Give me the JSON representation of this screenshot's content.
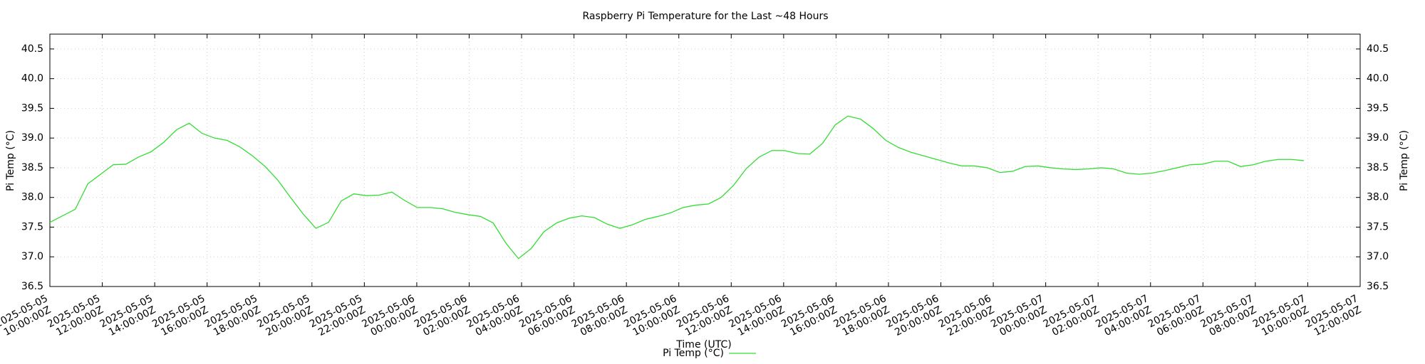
{
  "chart_data": {
    "type": "line",
    "title": "Raspberry Pi Temperature for the Last ~48 Hours",
    "xlabel": "Time (UTC)",
    "ylabel": "Pi Temp (°C)",
    "y2label": "Pi Temp (°C)",
    "grid": true,
    "legend": "bottom",
    "xlim": [
      "2025-05-05T10:00:00Z",
      "2025-05-07T12:00:00Z"
    ],
    "xticks": [
      {
        "value": "2025-05-05T10:00:00Z",
        "label": "2025-05-05 10:00:00Z"
      },
      {
        "value": "2025-05-05T12:00:00Z",
        "label": "2025-05-05 12:00:00Z"
      },
      {
        "value": "2025-05-05T14:00:00Z",
        "label": "2025-05-05 14:00:00Z"
      },
      {
        "value": "2025-05-05T16:00:00Z",
        "label": "2025-05-05 16:00:00Z"
      },
      {
        "value": "2025-05-05T18:00:00Z",
        "label": "2025-05-05 18:00:00Z"
      },
      {
        "value": "2025-05-05T20:00:00Z",
        "label": "2025-05-05 20:00:00Z"
      },
      {
        "value": "2025-05-05T22:00:00Z",
        "label": "2025-05-05 22:00:00Z"
      },
      {
        "value": "2025-05-06T00:00:00Z",
        "label": "2025-05-06 00:00:00Z"
      },
      {
        "value": "2025-05-06T02:00:00Z",
        "label": "2025-05-06 02:00:00Z"
      },
      {
        "value": "2025-05-06T04:00:00Z",
        "label": "2025-05-06 04:00:00Z"
      },
      {
        "value": "2025-05-06T06:00:00Z",
        "label": "2025-05-06 06:00:00Z"
      },
      {
        "value": "2025-05-06T08:00:00Z",
        "label": "2025-05-06 08:00:00Z"
      },
      {
        "value": "2025-05-06T10:00:00Z",
        "label": "2025-05-06 10:00:00Z"
      },
      {
        "value": "2025-05-06T12:00:00Z",
        "label": "2025-05-06 12:00:00Z"
      },
      {
        "value": "2025-05-06T14:00:00Z",
        "label": "2025-05-06 14:00:00Z"
      },
      {
        "value": "2025-05-06T16:00:00Z",
        "label": "2025-05-06 16:00:00Z"
      },
      {
        "value": "2025-05-06T18:00:00Z",
        "label": "2025-05-06 18:00:00Z"
      },
      {
        "value": "2025-05-06T20:00:00Z",
        "label": "2025-05-06 20:00:00Z"
      },
      {
        "value": "2025-05-06T22:00:00Z",
        "label": "2025-05-06 22:00:00Z"
      },
      {
        "value": "2025-05-07T00:00:00Z",
        "label": "2025-05-07 00:00:00Z"
      },
      {
        "value": "2025-05-07T02:00:00Z",
        "label": "2025-05-07 02:00:00Z"
      },
      {
        "value": "2025-05-07T04:00:00Z",
        "label": "2025-05-07 04:00:00Z"
      },
      {
        "value": "2025-05-07T06:00:00Z",
        "label": "2025-05-07 06:00:00Z"
      },
      {
        "value": "2025-05-07T08:00:00Z",
        "label": "2025-05-07 08:00:00Z"
      },
      {
        "value": "2025-05-07T10:00:00Z",
        "label": "2025-05-07 10:00:00Z"
      },
      {
        "value": "2025-05-07T12:00:00Z",
        "label": "2025-05-07 12:00:00Z"
      }
    ],
    "ylim": [
      36.5,
      40.75
    ],
    "yticks": [
      36.5,
      {
        "value": 37,
        "label": "37.0"
      },
      37.5,
      {
        "value": 38,
        "label": "38.0"
      },
      38.5,
      {
        "value": 39,
        "label": "39.0"
      },
      39.5,
      {
        "value": 40,
        "label": "40.0"
      },
      40.5
    ],
    "y2lim": [
      36.5,
      40.75
    ],
    "y2ticks": [
      36.5,
      {
        "value": 37,
        "label": "37.0"
      },
      37.5,
      {
        "value": 38,
        "label": "38.0"
      },
      38.5,
      {
        "value": 39,
        "label": "39.0"
      },
      39.5,
      {
        "value": 40,
        "label": "40.0"
      },
      40.5
    ],
    "x": [
      "2025-05-05T10:00:00Z",
      "2025-05-05T10:29:00Z",
      "2025-05-05T10:58:00Z",
      "2025-05-05T11:27:00Z",
      "2025-05-05T11:56:00Z",
      "2025-05-05T12:25:00Z",
      "2025-05-05T12:54:00Z",
      "2025-05-05T13:23:00Z",
      "2025-05-05T13:52:00Z",
      "2025-05-05T14:21:00Z",
      "2025-05-05T14:50:00Z",
      "2025-05-05T15:19:00Z",
      "2025-05-05T15:48:00Z",
      "2025-05-05T16:17:00Z",
      "2025-05-05T16:46:00Z",
      "2025-05-05T17:15:00Z",
      "2025-05-05T17:44:00Z",
      "2025-05-05T18:13:00Z",
      "2025-05-05T18:42:00Z",
      "2025-05-05T19:11:00Z",
      "2025-05-05T19:40:00Z",
      "2025-05-05T20:09:00Z",
      "2025-05-05T20:38:00Z",
      "2025-05-05T21:07:00Z",
      "2025-05-05T21:36:00Z",
      "2025-05-05T22:05:00Z",
      "2025-05-05T22:34:00Z",
      "2025-05-05T23:03:00Z",
      "2025-05-05T23:32:00Z",
      "2025-05-06T00:01:00Z",
      "2025-05-06T00:30:00Z",
      "2025-05-06T00:59:00Z",
      "2025-05-06T01:28:00Z",
      "2025-05-06T01:57:00Z",
      "2025-05-06T02:26:00Z",
      "2025-05-06T02:55:00Z",
      "2025-05-06T03:24:00Z",
      "2025-05-06T03:53:00Z",
      "2025-05-06T04:22:00Z",
      "2025-05-06T04:51:00Z",
      "2025-05-06T05:20:00Z",
      "2025-05-06T05:49:00Z",
      "2025-05-06T06:18:00Z",
      "2025-05-06T06:47:00Z",
      "2025-05-06T07:16:00Z",
      "2025-05-06T07:45:00Z",
      "2025-05-06T08:14:00Z",
      "2025-05-06T08:43:00Z",
      "2025-05-06T09:12:00Z",
      "2025-05-06T09:41:00Z",
      "2025-05-06T10:10:00Z",
      "2025-05-06T10:39:00Z",
      "2025-05-06T11:08:00Z",
      "2025-05-06T11:37:00Z",
      "2025-05-06T12:06:00Z",
      "2025-05-06T12:35:00Z",
      "2025-05-06T13:04:00Z",
      "2025-05-06T13:33:00Z",
      "2025-05-06T14:02:00Z",
      "2025-05-06T14:31:00Z",
      "2025-05-06T15:00:00Z",
      "2025-05-06T15:29:00Z",
      "2025-05-06T15:58:00Z",
      "2025-05-06T16:27:00Z",
      "2025-05-06T16:56:00Z",
      "2025-05-06T17:25:00Z",
      "2025-05-06T17:54:00Z",
      "2025-05-06T18:23:00Z",
      "2025-05-06T18:52:00Z",
      "2025-05-06T19:21:00Z",
      "2025-05-06T19:50:00Z",
      "2025-05-06T20:19:00Z",
      "2025-05-06T20:48:00Z",
      "2025-05-06T21:17:00Z",
      "2025-05-06T21:46:00Z",
      "2025-05-06T22:15:00Z",
      "2025-05-06T22:44:00Z",
      "2025-05-06T23:13:00Z",
      "2025-05-06T23:42:00Z",
      "2025-05-07T00:11:00Z",
      "2025-05-07T00:40:00Z",
      "2025-05-07T01:09:00Z",
      "2025-05-07T01:38:00Z",
      "2025-05-07T02:07:00Z",
      "2025-05-07T02:36:00Z",
      "2025-05-07T03:05:00Z",
      "2025-05-07T03:34:00Z",
      "2025-05-07T04:03:00Z",
      "2025-05-07T04:32:00Z",
      "2025-05-07T05:01:00Z",
      "2025-05-07T05:30:00Z",
      "2025-05-07T05:59:00Z",
      "2025-05-07T06:28:00Z",
      "2025-05-07T06:57:00Z",
      "2025-05-07T07:26:00Z",
      "2025-05-07T07:55:00Z",
      "2025-05-07T08:24:00Z",
      "2025-05-07T08:53:00Z",
      "2025-05-07T09:22:00Z",
      "2025-05-07T09:51:00Z"
    ],
    "series": [
      {
        "name": "Pi Temp (°C)",
        "color": "#33dd33",
        "values": [
          37.58,
          37.69,
          37.8,
          38.23,
          38.39,
          38.55,
          38.56,
          38.68,
          38.77,
          38.93,
          39.14,
          39.25,
          39.08,
          39.0,
          38.96,
          38.85,
          38.7,
          38.52,
          38.29,
          38.0,
          37.72,
          37.48,
          37.58,
          37.94,
          38.06,
          38.03,
          38.04,
          38.09,
          37.95,
          37.83,
          37.83,
          37.81,
          37.75,
          37.71,
          37.68,
          37.57,
          37.23,
          36.97,
          37.14,
          37.42,
          37.57,
          37.65,
          37.69,
          37.66,
          37.55,
          37.48,
          37.54,
          37.63,
          37.68,
          37.74,
          37.83,
          37.87,
          37.89,
          38.0,
          38.21,
          38.49,
          38.68,
          38.79,
          38.79,
          38.74,
          38.73,
          38.91,
          39.22,
          39.37,
          39.32,
          39.16,
          38.96,
          38.84,
          38.76,
          38.7,
          38.64,
          38.58,
          38.53,
          38.53,
          38.5,
          38.42,
          38.44,
          38.52,
          38.53,
          38.5,
          38.48,
          38.47,
          38.48,
          38.5,
          38.48,
          38.41,
          38.39,
          38.41,
          38.45,
          38.5,
          38.55,
          38.56,
          38.61,
          38.61,
          38.52,
          38.55,
          38.61,
          38.64,
          38.64,
          38.62
        ]
      }
    ]
  }
}
